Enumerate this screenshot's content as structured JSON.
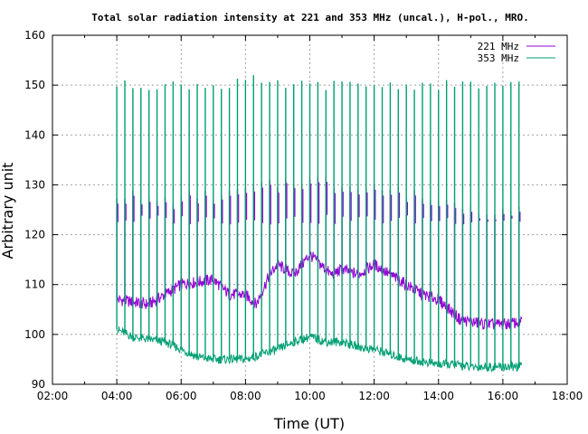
{
  "chart_data": {
    "type": "line",
    "title": "Total solar radiation intensity at 221 and 353 MHz (uncal.), H-pol., MRO.",
    "xlabel": "Time (UT)",
    "ylabel": "Arbitrary unit",
    "xlim": [
      "02:00",
      "18:00"
    ],
    "ylim": [
      90,
      160
    ],
    "x_ticks": [
      "02:00",
      "04:00",
      "06:00",
      "08:00",
      "10:00",
      "12:00",
      "14:00",
      "16:00",
      "18:00"
    ],
    "y_ticks": [
      "90",
      "100",
      "110",
      "120",
      "130",
      "140",
      "150",
      "160"
    ],
    "grid": true,
    "legend_position": "top-right",
    "series": [
      {
        "name": "221 MHz",
        "color": "#9400d3",
        "baseline": [
          [
            "04:00",
            107
          ],
          [
            "04:30",
            106.5
          ],
          [
            "05:00",
            106
          ],
          [
            "05:30",
            108
          ],
          [
            "06:00",
            110
          ],
          [
            "06:30",
            110.5
          ],
          [
            "07:00",
            111
          ],
          [
            "07:30",
            108
          ],
          [
            "08:00",
            108
          ],
          [
            "08:20",
            106
          ],
          [
            "08:45",
            112
          ],
          [
            "09:00",
            114
          ],
          [
            "09:30",
            112
          ],
          [
            "10:00",
            116
          ],
          [
            "10:20",
            114
          ],
          [
            "10:40",
            112
          ],
          [
            "11:00",
            113
          ],
          [
            "11:30",
            112
          ],
          [
            "12:00",
            114
          ],
          [
            "12:30",
            112
          ],
          [
            "13:00",
            110
          ],
          [
            "13:30",
            108
          ],
          [
            "14:00",
            107
          ],
          [
            "14:20",
            105
          ],
          [
            "14:40",
            103
          ],
          [
            "15:00",
            102.5
          ],
          [
            "15:30",
            102
          ],
          [
            "16:00",
            102
          ],
          [
            "16:35",
            102.5
          ]
        ],
        "spike_peaks": [
          128,
          127,
          127,
          128,
          128,
          129,
          130,
          131,
          131,
          130,
          130,
          129,
          128,
          127,
          126,
          125,
          125
        ]
      },
      {
        "name": "353 MHz",
        "color": "#009e73",
        "baseline": [
          [
            "04:00",
            101
          ],
          [
            "04:30",
            99.5
          ],
          [
            "05:00",
            99
          ],
          [
            "05:30",
            98.5
          ],
          [
            "06:00",
            97
          ],
          [
            "06:30",
            95.5
          ],
          [
            "07:00",
            95
          ],
          [
            "07:30",
            95
          ],
          [
            "08:00",
            95
          ],
          [
            "08:30",
            96
          ],
          [
            "09:00",
            97
          ],
          [
            "09:30",
            98.5
          ],
          [
            "10:00",
            99.5
          ],
          [
            "10:30",
            98.5
          ],
          [
            "11:00",
            98.5
          ],
          [
            "11:30",
            97.5
          ],
          [
            "12:00",
            97
          ],
          [
            "12:30",
            96
          ],
          [
            "13:00",
            95
          ],
          [
            "13:30",
            94.5
          ],
          [
            "14:00",
            94
          ],
          [
            "14:30",
            94
          ],
          [
            "15:00",
            93.5
          ],
          [
            "15:30",
            93.5
          ],
          [
            "16:00",
            93.5
          ],
          [
            "16:35",
            93.5
          ]
        ],
        "spike_peaks": [
          150,
          150,
          150,
          150,
          150,
          151,
          150,
          150,
          150,
          150,
          150,
          150,
          150,
          150,
          150,
          150,
          150
        ]
      }
    ],
    "spike_times": [
      "04:00",
      "04:15",
      "04:30",
      "04:45",
      "05:00",
      "05:15",
      "05:30",
      "05:45",
      "06:00",
      "06:15",
      "06:30",
      "06:45",
      "07:00",
      "07:15",
      "07:30",
      "07:45",
      "08:00",
      "08:15",
      "08:30",
      "08:45",
      "09:00",
      "09:15",
      "09:30",
      "09:45",
      "10:00",
      "10:15",
      "10:30",
      "10:45",
      "11:00",
      "11:15",
      "11:30",
      "11:45",
      "12:00",
      "12:15",
      "12:30",
      "12:45",
      "13:00",
      "13:15",
      "13:30",
      "13:45",
      "14:00",
      "14:15",
      "14:30",
      "14:45",
      "15:00",
      "15:15",
      "15:30",
      "15:45",
      "16:00",
      "16:15",
      "16:30"
    ],
    "x_end": "16:35"
  }
}
